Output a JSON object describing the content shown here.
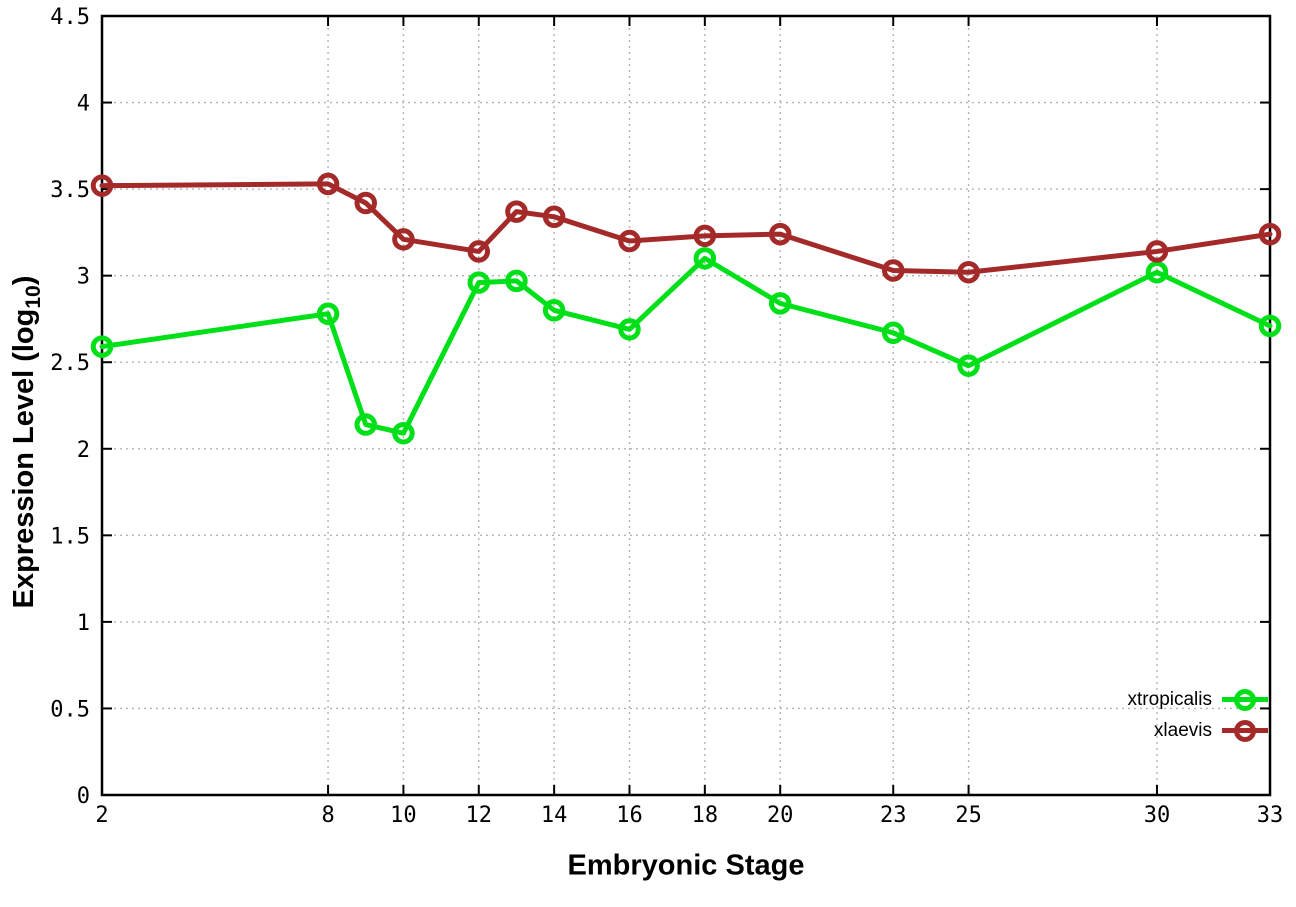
{
  "chart_data": {
    "type": "line",
    "title": "",
    "xlabel": "Embryonic Stage",
    "ylabel": {
      "prefix": "Expression Level (log",
      "subscript": "10",
      "suffix": ")"
    },
    "xlim": [
      2,
      33
    ],
    "ylim": [
      0,
      4.5
    ],
    "grid": true,
    "legend_position": "inside bottom-right",
    "x": [
      2,
      8,
      9,
      10,
      12,
      13,
      14,
      16,
      18,
      20,
      23,
      25,
      30,
      33
    ],
    "xtick_values": [
      2,
      8,
      10,
      12,
      14,
      16,
      18,
      20,
      23,
      25,
      30,
      33
    ],
    "xtick_labels": [
      "2",
      "8",
      "10",
      "12",
      "14",
      "16",
      "18",
      "20",
      "23",
      "25",
      "30",
      "33"
    ],
    "ytick_values": [
      0,
      0.5,
      1,
      1.5,
      2,
      2.5,
      3,
      3.5,
      4,
      4.5
    ],
    "ytick_labels": [
      "0",
      "0.5",
      "1",
      "1.5",
      "2",
      "2.5",
      "3",
      "3.5",
      "4",
      "4.5"
    ],
    "series": [
      {
        "name": "xtropicalis",
        "color": "#00e019",
        "values": [
          2.59,
          2.78,
          2.14,
          2.09,
          2.96,
          2.97,
          2.8,
          2.69,
          3.1,
          2.84,
          2.67,
          2.48,
          3.02,
          2.71
        ]
      },
      {
        "name": "xlaevis",
        "color": "#a42a2a",
        "values": [
          3.52,
          3.53,
          3.42,
          3.21,
          3.14,
          3.37,
          3.34,
          3.2,
          3.23,
          3.24,
          3.03,
          3.02,
          3.14,
          3.24
        ]
      }
    ],
    "colors": {
      "background": "#ffffff",
      "border": "#000000",
      "grid": "#b4b4b4",
      "tick_text": "#000000"
    }
  }
}
